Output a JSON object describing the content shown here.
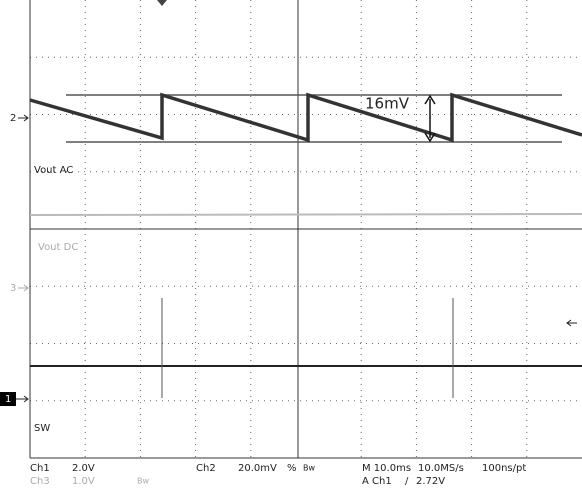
{
  "markers": {
    "ch2": "2",
    "ch3": "3",
    "ch1": "1"
  },
  "labels": {
    "ch2": "Vout AC",
    "ch3": "Vout DC",
    "ch1": "SW"
  },
  "annotation": "16mV",
  "status": {
    "ch1": "Ch1",
    "ch1_scale": "2.0V",
    "ch3": "Ch3",
    "ch3_scale": "1.0V",
    "ch3_bw": "Bw",
    "ch2": "Ch2",
    "ch2_scale": "20.0mV",
    "ch2_bw_symbol": "%",
    "ch2_bw": "Bw",
    "timebase": "M 10.0ms",
    "sample_rate": "10.0MS/s",
    "resolution": "100ns/pt",
    "trigger_source": "A Ch1",
    "trigger_slope": "/",
    "trigger_level": "2.72V"
  }
}
